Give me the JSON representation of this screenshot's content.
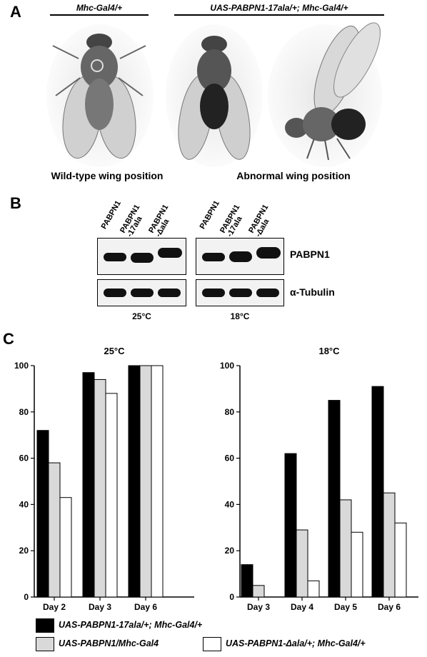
{
  "panelA": {
    "letter": "A",
    "genotype_left": "Mhc-Gal4/+",
    "genotype_right": "UAS-PABPN1-17ala/+; Mhc-Gal4/+",
    "caption_left": "Wild-type wing position",
    "caption_right": "Abnormal wing position"
  },
  "panelB": {
    "letter": "B",
    "lanes": [
      "PABPN1",
      "PABPN1\n-17ala",
      "PABPN1\n-Δala",
      "PABPN1",
      "PABPN1\n-17ala",
      "PABPN1\n-Δala"
    ],
    "row1_label": "PABPN1",
    "row2_label": "α-Tubulin",
    "temp_left": "25°C",
    "temp_right": "18°C"
  },
  "panelC": {
    "letter": "C",
    "legend": [
      {
        "label": "UAS-PABPN1-17ala/+; Mhc-Gal4/+",
        "color": "#000000"
      },
      {
        "label": "UAS-PABPN1/Mhc-Gal4",
        "color": "#d9d9d9"
      },
      {
        "label": "UAS-PABPN1-Δala/+; Mhc-Gal4/+",
        "color": "#ffffff"
      }
    ]
  },
  "chart_data": [
    {
      "type": "bar",
      "title": "25°C",
      "categories": [
        "Day 2",
        "Day 3",
        "Day 6"
      ],
      "ylim": [
        0,
        100
      ],
      "yticks": [
        "0",
        "20",
        "40",
        "60",
        "80",
        "100"
      ],
      "series": [
        {
          "name": "UAS-PABPN1-17ala/+; Mhc-Gal4/+",
          "color": "#000000",
          "values": [
            72,
            97,
            100
          ]
        },
        {
          "name": "UAS-PABPN1/Mhc-Gal4",
          "color": "#d9d9d9",
          "values": [
            58,
            94,
            100
          ]
        },
        {
          "name": "UAS-PABPN1-Δala/+; Mhc-Gal4/+",
          "color": "#ffffff",
          "values": [
            43,
            88,
            100
          ]
        }
      ]
    },
    {
      "type": "bar",
      "title": "18°C",
      "categories": [
        "Day 3",
        "Day 4",
        "Day 5",
        "Day 6"
      ],
      "ylim": [
        0,
        100
      ],
      "yticks": [
        "0",
        "20",
        "40",
        "60",
        "80",
        "100"
      ],
      "series": [
        {
          "name": "UAS-PABPN1-17ala/+; Mhc-Gal4/+",
          "color": "#000000",
          "values": [
            14,
            62,
            85,
            91
          ]
        },
        {
          "name": "UAS-PABPN1/Mhc-Gal4",
          "color": "#d9d9d9",
          "values": [
            5,
            29,
            42,
            45
          ]
        },
        {
          "name": "UAS-PABPN1-Δala/+; Mhc-Gal4/+",
          "color": "#ffffff",
          "values": [
            0,
            7,
            28,
            32
          ]
        }
      ]
    }
  ]
}
